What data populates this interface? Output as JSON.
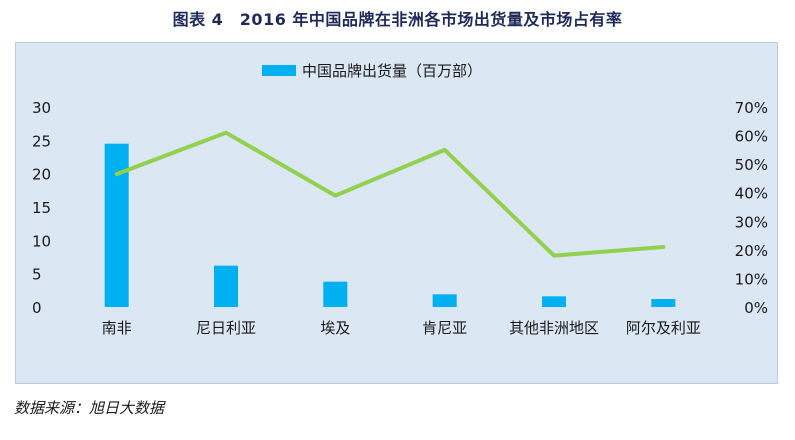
{
  "figure": {
    "title": "图表 4　2016 年中国品牌在非洲各市场出货量及市场占有率",
    "source": "数据来源：旭日大数据"
  },
  "colors": {
    "bar": "#00b0f0",
    "line": "#92d050",
    "panel_bg": "#dce7f4"
  },
  "chart_data": {
    "type": "bar",
    "title": "图表 4　2016 年中国品牌在非洲各市场出货量及市场占有率",
    "categories": [
      "南非",
      "尼日利亚",
      "埃及",
      "肯尼亚",
      "其他非洲地区",
      "阿尔及利亚"
    ],
    "series": [
      {
        "name": "中国品牌出货量（百万部）",
        "type": "bar",
        "axis": "left",
        "values": [
          24.5,
          6.2,
          3.8,
          1.9,
          1.6,
          1.2
        ]
      },
      {
        "name": "",
        "type": "line",
        "axis": "right",
        "values": [
          0.465,
          0.61,
          0.39,
          0.55,
          0.18,
          0.21
        ]
      }
    ],
    "y_left": {
      "min": 0,
      "max": 30,
      "ticks": [
        "0",
        "5",
        "10",
        "15",
        "20",
        "25",
        "30"
      ]
    },
    "y_right": {
      "min": 0,
      "max": 0.7,
      "ticks": [
        "0%",
        "10%",
        "20%",
        "30%",
        "40%",
        "50%",
        "60%",
        "70%"
      ]
    },
    "xlabel": "",
    "ylabel": "",
    "legend": {
      "position": "top",
      "entries": [
        "中国品牌出货量（百万部）"
      ]
    },
    "grid": false
  }
}
